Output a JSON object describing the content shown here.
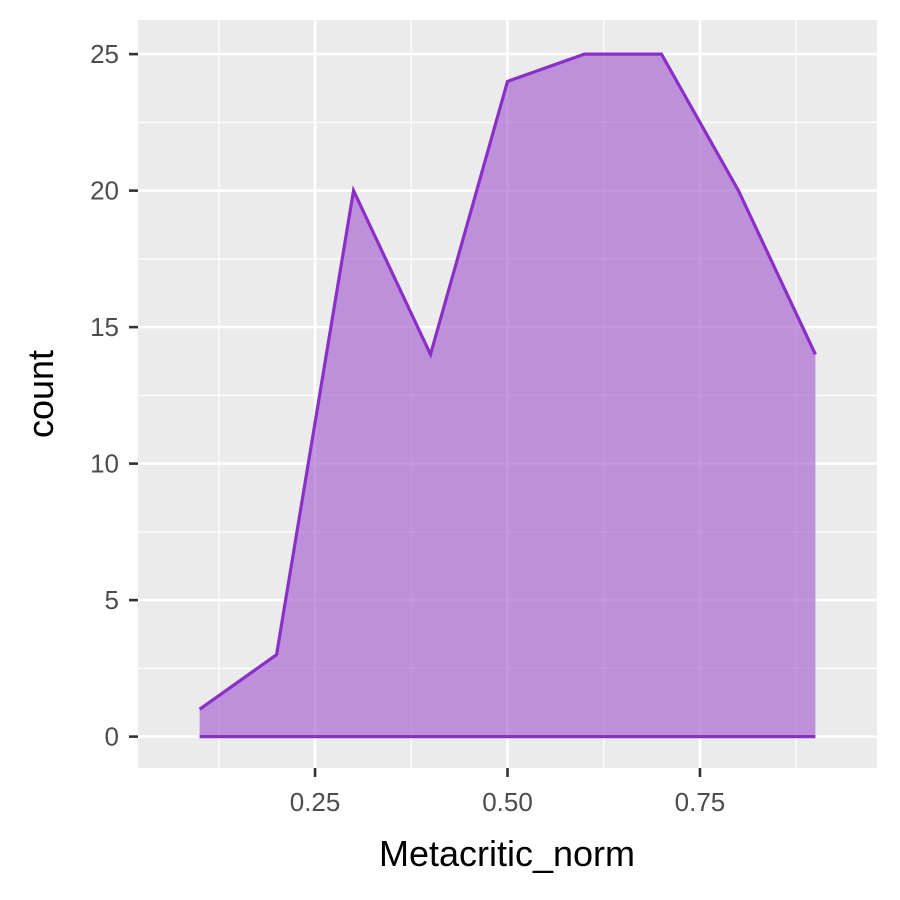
{
  "chart_data": {
    "type": "area",
    "title": "",
    "xlabel": "Metacritic_norm",
    "ylabel": "count",
    "x": [
      0.1,
      0.2,
      0.3,
      0.4,
      0.5,
      0.6,
      0.7,
      0.8,
      0.9
    ],
    "series": [
      {
        "values": [
          1,
          3,
          20,
          14,
          24,
          25,
          25,
          20,
          14
        ]
      }
    ],
    "xlim": [
      0.02,
      0.98
    ],
    "ylim": [
      -1.15,
      26.25
    ],
    "xticks": [
      0.25,
      0.5,
      0.75
    ],
    "xtick_labels": [
      "0.25",
      "0.50",
      "0.75"
    ],
    "yticks": [
      0,
      5,
      10,
      15,
      20,
      25
    ],
    "ytick_labels": [
      "0",
      "5",
      "10",
      "15",
      "20",
      "25"
    ],
    "grid": true,
    "legend": "none",
    "colors": {
      "panel_background": "#ebebeb",
      "grid": "#ffffff",
      "line": "#8b2fc9",
      "fill": "#a65fd1",
      "fill_opacity": 0.65
    }
  }
}
